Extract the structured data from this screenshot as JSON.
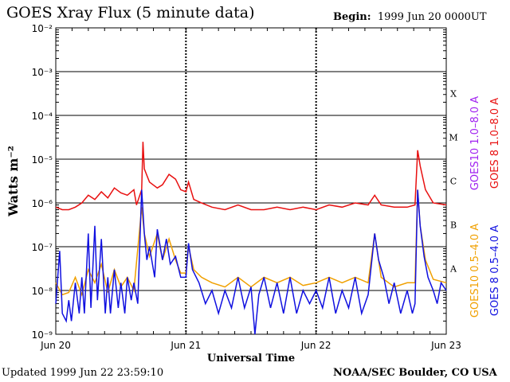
{
  "header": {
    "title": "GOES Xray Flux (5 minute data)",
    "begin_label": "Begin:",
    "begin_value": "1999 Jun 20 0000UT"
  },
  "footer": {
    "updated_label": "Updated",
    "updated_value": "1999 Jun 22 23:59:10",
    "credit": "NOAA/SEC Boulder, CO USA"
  },
  "chart_data": {
    "type": "line",
    "title": "GOES Xray Flux (5 minute data)",
    "xlabel": "Universal Time",
    "ylabel": "Watts m⁻²",
    "yscale": "log",
    "ylim": [
      1e-09,
      0.01
    ],
    "xlim": [
      0,
      3
    ],
    "y_ticks": [
      {
        "exp": -9,
        "label": "10⁻⁹"
      },
      {
        "exp": -8,
        "label": "10⁻⁸"
      },
      {
        "exp": -7,
        "label": "10⁻⁷"
      },
      {
        "exp": -6,
        "label": "10⁻⁶"
      },
      {
        "exp": -5,
        "label": "10⁻⁵"
      },
      {
        "exp": -4,
        "label": "10⁻⁴"
      },
      {
        "exp": -3,
        "label": "10⁻³"
      },
      {
        "exp": -2,
        "label": "10⁻²"
      }
    ],
    "x_ticks": [
      {
        "x": 0,
        "label": "Jun 20"
      },
      {
        "x": 1,
        "label": "Jun 21"
      },
      {
        "x": 2,
        "label": "Jun 22"
      },
      {
        "x": 3,
        "label": "Jun 23"
      }
    ],
    "flare_classes": [
      {
        "label": "A",
        "exp": -7.5
      },
      {
        "label": "B",
        "exp": -6.5
      },
      {
        "label": "C",
        "exp": -5.5
      },
      {
        "label": "M",
        "exp": -4.5
      },
      {
        "label": "X",
        "exp": -3.5
      }
    ],
    "grid": true,
    "legend_placement": "right-outside",
    "series": [
      {
        "name": "GOES10 1.0–8.0 A",
        "color": "#a020f0",
        "points": []
      },
      {
        "name": "GOES 8 1.0–8.0 A",
        "color": "#e81010",
        "points": [
          [
            0.0,
            8e-07
          ],
          [
            0.05,
            7e-07
          ],
          [
            0.1,
            7e-07
          ],
          [
            0.15,
            8e-07
          ],
          [
            0.2,
            1e-06
          ],
          [
            0.25,
            1.5e-06
          ],
          [
            0.3,
            1.2e-06
          ],
          [
            0.35,
            1.8e-06
          ],
          [
            0.4,
            1.3e-06
          ],
          [
            0.45,
            2.2e-06
          ],
          [
            0.5,
            1.7e-06
          ],
          [
            0.55,
            1.5e-06
          ],
          [
            0.6,
            2e-06
          ],
          [
            0.62,
            9e-07
          ],
          [
            0.66,
            2e-06
          ],
          [
            0.67,
            2.5e-05
          ],
          [
            0.68,
            6e-06
          ],
          [
            0.72,
            3e-06
          ],
          [
            0.78,
            2.2e-06
          ],
          [
            0.82,
            2.6e-06
          ],
          [
            0.87,
            4.5e-06
          ],
          [
            0.92,
            3.5e-06
          ],
          [
            0.96,
            2e-06
          ],
          [
            1.0,
            1.8e-06
          ],
          [
            1.02,
            3e-06
          ],
          [
            1.06,
            1.2e-06
          ],
          [
            1.12,
            1e-06
          ],
          [
            1.2,
            8e-07
          ],
          [
            1.3,
            7e-07
          ],
          [
            1.4,
            9e-07
          ],
          [
            1.5,
            7e-07
          ],
          [
            1.6,
            7e-07
          ],
          [
            1.7,
            8e-07
          ],
          [
            1.8,
            7e-07
          ],
          [
            1.9,
            8e-07
          ],
          [
            2.0,
            7e-07
          ],
          [
            2.1,
            9e-07
          ],
          [
            2.2,
            8e-07
          ],
          [
            2.3,
            1e-06
          ],
          [
            2.4,
            9e-07
          ],
          [
            2.45,
            1.5e-06
          ],
          [
            2.5,
            9e-07
          ],
          [
            2.6,
            8e-07
          ],
          [
            2.7,
            8e-07
          ],
          [
            2.76,
            9e-07
          ],
          [
            2.78,
            1.6e-05
          ],
          [
            2.8,
            7e-06
          ],
          [
            2.84,
            2e-06
          ],
          [
            2.9,
            1e-06
          ],
          [
            3.0,
            9e-07
          ]
        ]
      },
      {
        "name": "GOES10 0.5–4.0 A",
        "color": "#f0a000",
        "points": [
          [
            0.0,
            1.5e-08
          ],
          [
            0.05,
            8e-09
          ],
          [
            0.1,
            9e-09
          ],
          [
            0.15,
            2e-08
          ],
          [
            0.2,
            8e-09
          ],
          [
            0.25,
            3e-08
          ],
          [
            0.3,
            1.5e-08
          ],
          [
            0.35,
            4e-08
          ],
          [
            0.4,
            9e-09
          ],
          [
            0.45,
            3e-08
          ],
          [
            0.5,
            1.2e-08
          ],
          [
            0.55,
            2e-08
          ],
          [
            0.6,
            1e-08
          ],
          [
            0.66,
            8e-07
          ],
          [
            0.68,
            2e-07
          ],
          [
            0.72,
            6e-08
          ],
          [
            0.78,
            2e-07
          ],
          [
            0.82,
            5e-08
          ],
          [
            0.87,
            1.5e-07
          ],
          [
            0.92,
            5e-08
          ],
          [
            0.96,
            2.5e-08
          ],
          [
            1.0,
            2.5e-08
          ],
          [
            1.02,
            1e-07
          ],
          [
            1.06,
            3e-08
          ],
          [
            1.12,
            2e-08
          ],
          [
            1.2,
            1.5e-08
          ],
          [
            1.3,
            1.2e-08
          ],
          [
            1.4,
            2e-08
          ],
          [
            1.5,
            1.2e-08
          ],
          [
            1.6,
            2e-08
          ],
          [
            1.7,
            1.5e-08
          ],
          [
            1.8,
            2e-08
          ],
          [
            1.9,
            1.3e-08
          ],
          [
            2.0,
            1.5e-08
          ],
          [
            2.1,
            2e-08
          ],
          [
            2.2,
            1.5e-08
          ],
          [
            2.3,
            2e-08
          ],
          [
            2.4,
            1.5e-08
          ],
          [
            2.45,
            2e-07
          ],
          [
            2.5,
            2e-08
          ],
          [
            2.6,
            1.2e-08
          ],
          [
            2.7,
            1.5e-08
          ],
          [
            2.76,
            1.5e-08
          ],
          [
            2.78,
            2e-06
          ],
          [
            2.8,
            3e-07
          ],
          [
            2.84,
            5e-08
          ],
          [
            2.9,
            1.8e-08
          ],
          [
            3.0,
            1.5e-08
          ]
        ]
      },
      {
        "name": "GOES 8 0.5–4.0 A",
        "color": "#1010e0",
        "points": [
          [
            0.0,
            5e-09
          ],
          [
            0.03,
            8e-08
          ],
          [
            0.05,
            3e-09
          ],
          [
            0.08,
            2e-09
          ],
          [
            0.1,
            6e-09
          ],
          [
            0.12,
            2e-09
          ],
          [
            0.15,
            1.5e-08
          ],
          [
            0.18,
            3e-09
          ],
          [
            0.2,
            2e-08
          ],
          [
            0.22,
            3e-09
          ],
          [
            0.25,
            2e-07
          ],
          [
            0.27,
            4e-09
          ],
          [
            0.3,
            3e-07
          ],
          [
            0.32,
            6e-09
          ],
          [
            0.35,
            1.5e-07
          ],
          [
            0.38,
            3e-09
          ],
          [
            0.4,
            2e-08
          ],
          [
            0.42,
            3e-09
          ],
          [
            0.45,
            3e-08
          ],
          [
            0.48,
            4e-09
          ],
          [
            0.5,
            1.5e-08
          ],
          [
            0.53,
            3e-09
          ],
          [
            0.55,
            2e-08
          ],
          [
            0.58,
            6e-09
          ],
          [
            0.6,
            1.5e-08
          ],
          [
            0.63,
            5e-09
          ],
          [
            0.66,
            2e-06
          ],
          [
            0.68,
            2e-07
          ],
          [
            0.7,
            5e-08
          ],
          [
            0.72,
            1e-07
          ],
          [
            0.76,
            2e-08
          ],
          [
            0.78,
            2.5e-07
          ],
          [
            0.82,
            5e-08
          ],
          [
            0.85,
            1.5e-07
          ],
          [
            0.88,
            4e-08
          ],
          [
            0.92,
            6e-08
          ],
          [
            0.96,
            2e-08
          ],
          [
            1.0,
            2e-08
          ],
          [
            1.02,
            1.2e-07
          ],
          [
            1.05,
            3e-08
          ],
          [
            1.1,
            1.5e-08
          ],
          [
            1.15,
            5e-09
          ],
          [
            1.2,
            1e-08
          ],
          [
            1.25,
            3e-09
          ],
          [
            1.3,
            1e-08
          ],
          [
            1.35,
            4e-09
          ],
          [
            1.4,
            2e-08
          ],
          [
            1.45,
            4e-09
          ],
          [
            1.5,
            1.2e-08
          ],
          [
            1.53,
            1e-09
          ],
          [
            1.56,
            8e-09
          ],
          [
            1.6,
            2e-08
          ],
          [
            1.65,
            4e-09
          ],
          [
            1.7,
            1.5e-08
          ],
          [
            1.75,
            3e-09
          ],
          [
            1.8,
            2e-08
          ],
          [
            1.85,
            3e-09
          ],
          [
            1.9,
            1e-08
          ],
          [
            1.95,
            5e-09
          ],
          [
            2.0,
            1e-08
          ],
          [
            2.05,
            4e-09
          ],
          [
            2.1,
            2e-08
          ],
          [
            2.15,
            3e-09
          ],
          [
            2.2,
            1e-08
          ],
          [
            2.25,
            4e-09
          ],
          [
            2.3,
            2e-08
          ],
          [
            2.35,
            3e-09
          ],
          [
            2.4,
            8e-09
          ],
          [
            2.45,
            2e-07
          ],
          [
            2.48,
            5e-08
          ],
          [
            2.52,
            2e-08
          ],
          [
            2.56,
            5e-09
          ],
          [
            2.6,
            1.5e-08
          ],
          [
            2.65,
            3e-09
          ],
          [
            2.7,
            1e-08
          ],
          [
            2.74,
            3e-09
          ],
          [
            2.76,
            5e-09
          ],
          [
            2.78,
            2e-06
          ],
          [
            2.8,
            3e-07
          ],
          [
            2.83,
            6e-08
          ],
          [
            2.86,
            2e-08
          ],
          [
            2.9,
            1e-08
          ],
          [
            2.93,
            5e-09
          ],
          [
            2.96,
            1.5e-08
          ],
          [
            3.0,
            1e-08
          ]
        ]
      }
    ]
  }
}
